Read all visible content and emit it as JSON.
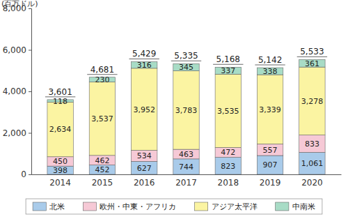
{
  "chart_data": {
    "type": "bar",
    "stacked": true,
    "data_labels": true,
    "grid": false,
    "legend": "bottom",
    "y_label": "(百万ドル)",
    "categories": [
      "2014",
      "2015",
      "2016",
      "2017",
      "2018",
      "2019",
      "2020"
    ],
    "ylim": [
      0,
      8000
    ],
    "yticks": [
      {
        "value": 0,
        "label": "0"
      },
      {
        "value": 2000,
        "label": "2,000"
      },
      {
        "value": 4000,
        "label": "4,000"
      },
      {
        "value": 6000,
        "label": "6,000"
      },
      {
        "value": 8000,
        "label": "8,000"
      }
    ],
    "series": [
      {
        "name": "北米",
        "color": "#a9cbea",
        "values": [
          398,
          452,
          627,
          744,
          823,
          907,
          1061
        ],
        "value_labels": [
          "398",
          "452",
          "627",
          "744",
          "823",
          "907",
          "1,061"
        ]
      },
      {
        "name": "欧州・中東・アフリカ",
        "color": "#f6c9d6",
        "values": [
          450,
          462,
          534,
          463,
          472,
          557,
          833
        ]
      },
      {
        "name": "アジア太平洋",
        "color": "#fbf4a2",
        "values": [
          2634,
          3537,
          3952,
          3783,
          3535,
          3339,
          3278
        ],
        "value_labels": [
          "2,634",
          "3,537",
          "3,952",
          "3,783",
          "3,535",
          "3,339",
          "3,278"
        ]
      },
      {
        "name": "中南米",
        "color": "#a8dcc6",
        "values": [
          118,
          230,
          316,
          345,
          337,
          338,
          361
        ]
      }
    ],
    "totals": [
      3601,
      4681,
      5429,
      5335,
      5168,
      5142,
      5533
    ],
    "total_labels": [
      "3,601",
      "4,681",
      "5,429",
      "5,335",
      "5,168",
      "5,142",
      "5,533"
    ]
  }
}
